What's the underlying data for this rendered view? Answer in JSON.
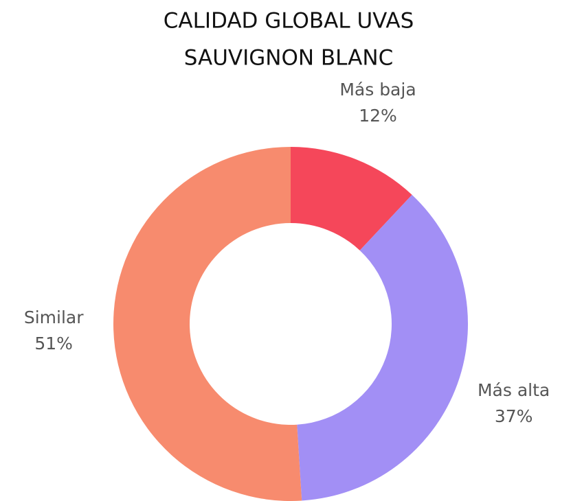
{
  "chart_data": {
    "type": "donut",
    "title": [
      "CALIDAD GLOBAL UVAS",
      "SAUVIGNON BLANC"
    ],
    "categories": [
      "Más baja",
      "Más alta",
      "Similar"
    ],
    "values": [
      12,
      37,
      51
    ],
    "value_labels": [
      "12%",
      "37%",
      "51%"
    ],
    "colors": [
      "#f5475a",
      "#a28ff5",
      "#f78b6e"
    ]
  }
}
